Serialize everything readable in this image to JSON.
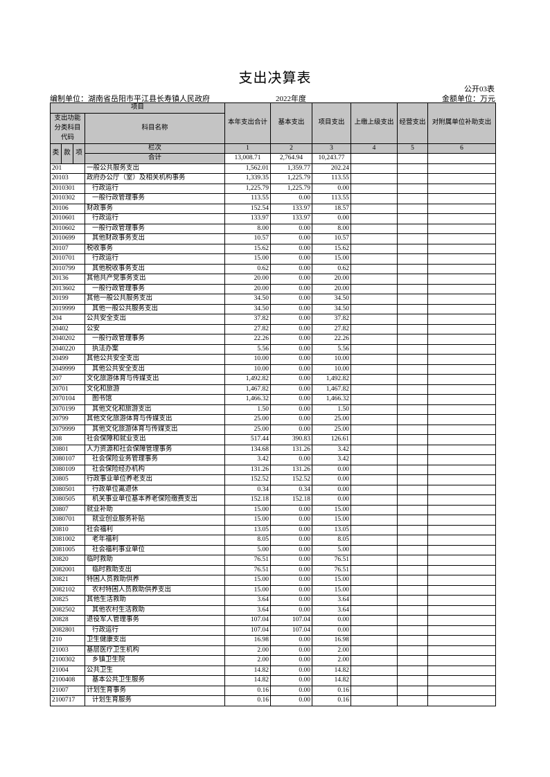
{
  "title": "支出决算表",
  "table_no": "公开03表",
  "unit_label": "编制单位：湖南省岳阳市平江县长寿镇人民政府",
  "year": "2022年度",
  "money_unit": "金额单位：万元",
  "headers": {
    "item": "项目",
    "code": "支出功能分类科目代码",
    "name": "科目名称",
    "total": "本年支出合计",
    "basic": "基本支出",
    "project": "项目支出",
    "upper": "上缴上级支出",
    "business": "经营支出",
    "subsidiary": "对附属单位补助支出",
    "lei": "类",
    "kuan": "款",
    "xiang": "项",
    "col_index": "栏次",
    "col_nums": [
      "1",
      "2",
      "3",
      "4",
      "5",
      "6"
    ],
    "sum_label": "合计",
    "sum": [
      "13,008.71",
      "2,764.94",
      "10,243.77"
    ]
  },
  "rows": [
    [
      "201",
      "一般公共服务支出",
      "1,562.01",
      "1,359.77",
      "202.24"
    ],
    [
      "20103",
      "政府办公厅（室）及相关机构事务",
      "1,339.35",
      "1,225.79",
      "113.55"
    ],
    [
      "2010301",
      "行政运行",
      "1,225.79",
      "1,225.79",
      "0.00"
    ],
    [
      "2010302",
      "一般行政管理事务",
      "113.55",
      "0.00",
      "113.55"
    ],
    [
      "20106",
      "财政事务",
      "152.54",
      "133.97",
      "18.57"
    ],
    [
      "2010601",
      "行政运行",
      "133.97",
      "133.97",
      "0.00"
    ],
    [
      "2010602",
      "一般行政管理事务",
      "8.00",
      "0.00",
      "8.00"
    ],
    [
      "2010699",
      "其他财政事务支出",
      "10.57",
      "0.00",
      "10.57"
    ],
    [
      "20107",
      "税收事务",
      "15.62",
      "0.00",
      "15.62"
    ],
    [
      "2010701",
      "行政运行",
      "15.00",
      "0.00",
      "15.00"
    ],
    [
      "2010799",
      "其他税收事务支出",
      "0.62",
      "0.00",
      "0.62"
    ],
    [
      "20136",
      "其他共产党事务支出",
      "20.00",
      "0.00",
      "20.00"
    ],
    [
      "2013602",
      "一般行政管理事务",
      "20.00",
      "0.00",
      "20.00"
    ],
    [
      "20199",
      "其他一般公共服务支出",
      "34.50",
      "0.00",
      "34.50"
    ],
    [
      "2019999",
      "其他一般公共服务支出",
      "34.50",
      "0.00",
      "34.50"
    ],
    [
      "204",
      "公共安全支出",
      "37.82",
      "0.00",
      "37.82"
    ],
    [
      "20402",
      "公安",
      "27.82",
      "0.00",
      "27.82"
    ],
    [
      "2040202",
      "一般行政管理事务",
      "22.26",
      "0.00",
      "22.26"
    ],
    [
      "2040220",
      "执法办案",
      "5.56",
      "0.00",
      "5.56"
    ],
    [
      "20499",
      "其他公共安全支出",
      "10.00",
      "0.00",
      "10.00"
    ],
    [
      "2049999",
      "其他公共安全支出",
      "10.00",
      "0.00",
      "10.00"
    ],
    [
      "207",
      "文化旅游体育与传媒支出",
      "1,492.82",
      "0.00",
      "1,492.82"
    ],
    [
      "20701",
      "文化和旅游",
      "1,467.82",
      "0.00",
      "1,467.82"
    ],
    [
      "2070104",
      "图书馆",
      "1,466.32",
      "0.00",
      "1,466.32"
    ],
    [
      "2070199",
      "其他文化和旅游支出",
      "1.50",
      "0.00",
      "1.50"
    ],
    [
      "20799",
      "其他文化旅游体育与传媒支出",
      "25.00",
      "0.00",
      "25.00"
    ],
    [
      "2079999",
      "其他文化旅游体育与传媒支出",
      "25.00",
      "0.00",
      "25.00"
    ],
    [
      "208",
      "社会保障和就业支出",
      "517.44",
      "390.83",
      "126.61"
    ],
    [
      "20801",
      "人力资源和社会保障管理事务",
      "134.68",
      "131.26",
      "3.42"
    ],
    [
      "2080107",
      "社会保险业务管理事务",
      "3.42",
      "0.00",
      "3.42"
    ],
    [
      "2080109",
      "社会保险经办机构",
      "131.26",
      "131.26",
      "0.00"
    ],
    [
      "20805",
      "行政事业单位养老支出",
      "152.52",
      "152.52",
      "0.00"
    ],
    [
      "2080501",
      "行政单位离退休",
      "0.34",
      "0.34",
      "0.00"
    ],
    [
      "2080505",
      "机关事业单位基本养老保险缴费支出",
      "152.18",
      "152.18",
      "0.00"
    ],
    [
      "20807",
      "就业补助",
      "15.00",
      "0.00",
      "15.00"
    ],
    [
      "2080701",
      "就业创业服务补贴",
      "15.00",
      "0.00",
      "15.00"
    ],
    [
      "20810",
      "社会福利",
      "13.05",
      "0.00",
      "13.05"
    ],
    [
      "2081002",
      "老年福利",
      "8.05",
      "0.00",
      "8.05"
    ],
    [
      "2081005",
      "社会福利事业单位",
      "5.00",
      "0.00",
      "5.00"
    ],
    [
      "20820",
      "临时救助",
      "76.51",
      "0.00",
      "76.51"
    ],
    [
      "2082001",
      "临时救助支出",
      "76.51",
      "0.00",
      "76.51"
    ],
    [
      "20821",
      "特困人员救助供养",
      "15.00",
      "0.00",
      "15.00"
    ],
    [
      "2082102",
      "农村特困人员救助供养支出",
      "15.00",
      "0.00",
      "15.00"
    ],
    [
      "20825",
      "其他生活救助",
      "3.64",
      "0.00",
      "3.64"
    ],
    [
      "2082502",
      "其他农村生活救助",
      "3.64",
      "0.00",
      "3.64"
    ],
    [
      "20828",
      "退役军人管理事务",
      "107.04",
      "107.04",
      "0.00"
    ],
    [
      "2082801",
      "行政运行",
      "107.04",
      "107.04",
      "0.00"
    ],
    [
      "210",
      "卫生健康支出",
      "16.98",
      "0.00",
      "16.98"
    ],
    [
      "21003",
      "基层医疗卫生机构",
      "2.00",
      "0.00",
      "2.00"
    ],
    [
      "2100302",
      "乡镇卫生院",
      "2.00",
      "0.00",
      "2.00"
    ],
    [
      "21004",
      "公共卫生",
      "14.82",
      "0.00",
      "14.82"
    ],
    [
      "2100408",
      "基本公共卫生服务",
      "14.82",
      "0.00",
      "14.82"
    ],
    [
      "21007",
      "计划生育事务",
      "0.16",
      "0.00",
      "0.16"
    ],
    [
      "2100717",
      "计划生育服务",
      "0.16",
      "0.00",
      "0.16"
    ]
  ]
}
